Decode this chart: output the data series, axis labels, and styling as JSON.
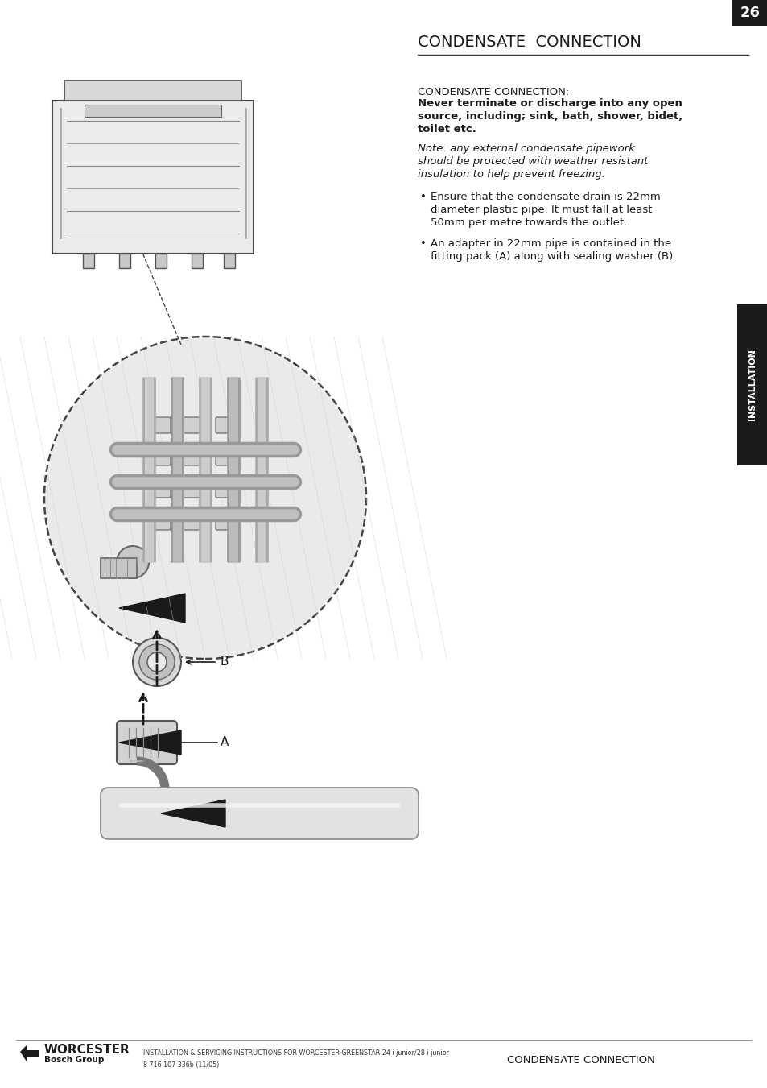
{
  "page_title": "CONDENSATE  CONNECTION",
  "title_underline": true,
  "section_title": "CONDENSATE CONNECTION:",
  "bold_lines": [
    "Never terminate or discharge into any open",
    "source, including; sink, bath, shower, bidet,",
    "toilet etc."
  ],
  "italic_lines": [
    "Note: any external condensate pipework",
    "should be protected with weather resistant",
    "insulation to help prevent freezing."
  ],
  "bullet1_lines": [
    "Ensure that the condensate drain is 22mm",
    "diameter plastic pipe. It must fall at least",
    "50mm per metre towards the outlet."
  ],
  "bullet2_lines": [
    "An adapter in 22mm pipe is contained in the",
    "fitting pack (A) along with sealing washer (B)."
  ],
  "side_label": "INSTALLATION",
  "footer_logo_name": "WORCESTER",
  "footer_logo_sub": "Bosch Group",
  "footer_instruction_line1": "INSTALLATION & SERVICING INSTRUCTIONS FOR WORCESTER GREENSTAR 24 i junior/28 i junior",
  "footer_instruction_line2": "8 716 107 336b (11/05)",
  "footer_right_text": "CONDENSATE CONNECTION",
  "page_number": "26",
  "bg_color": "#ffffff",
  "text_color": "#1a1a1a",
  "line_color": "#333333",
  "side_tab_color": "#1a1a1a",
  "side_tab_text_color": "#ffffff",
  "footer_line_color": "#999999"
}
